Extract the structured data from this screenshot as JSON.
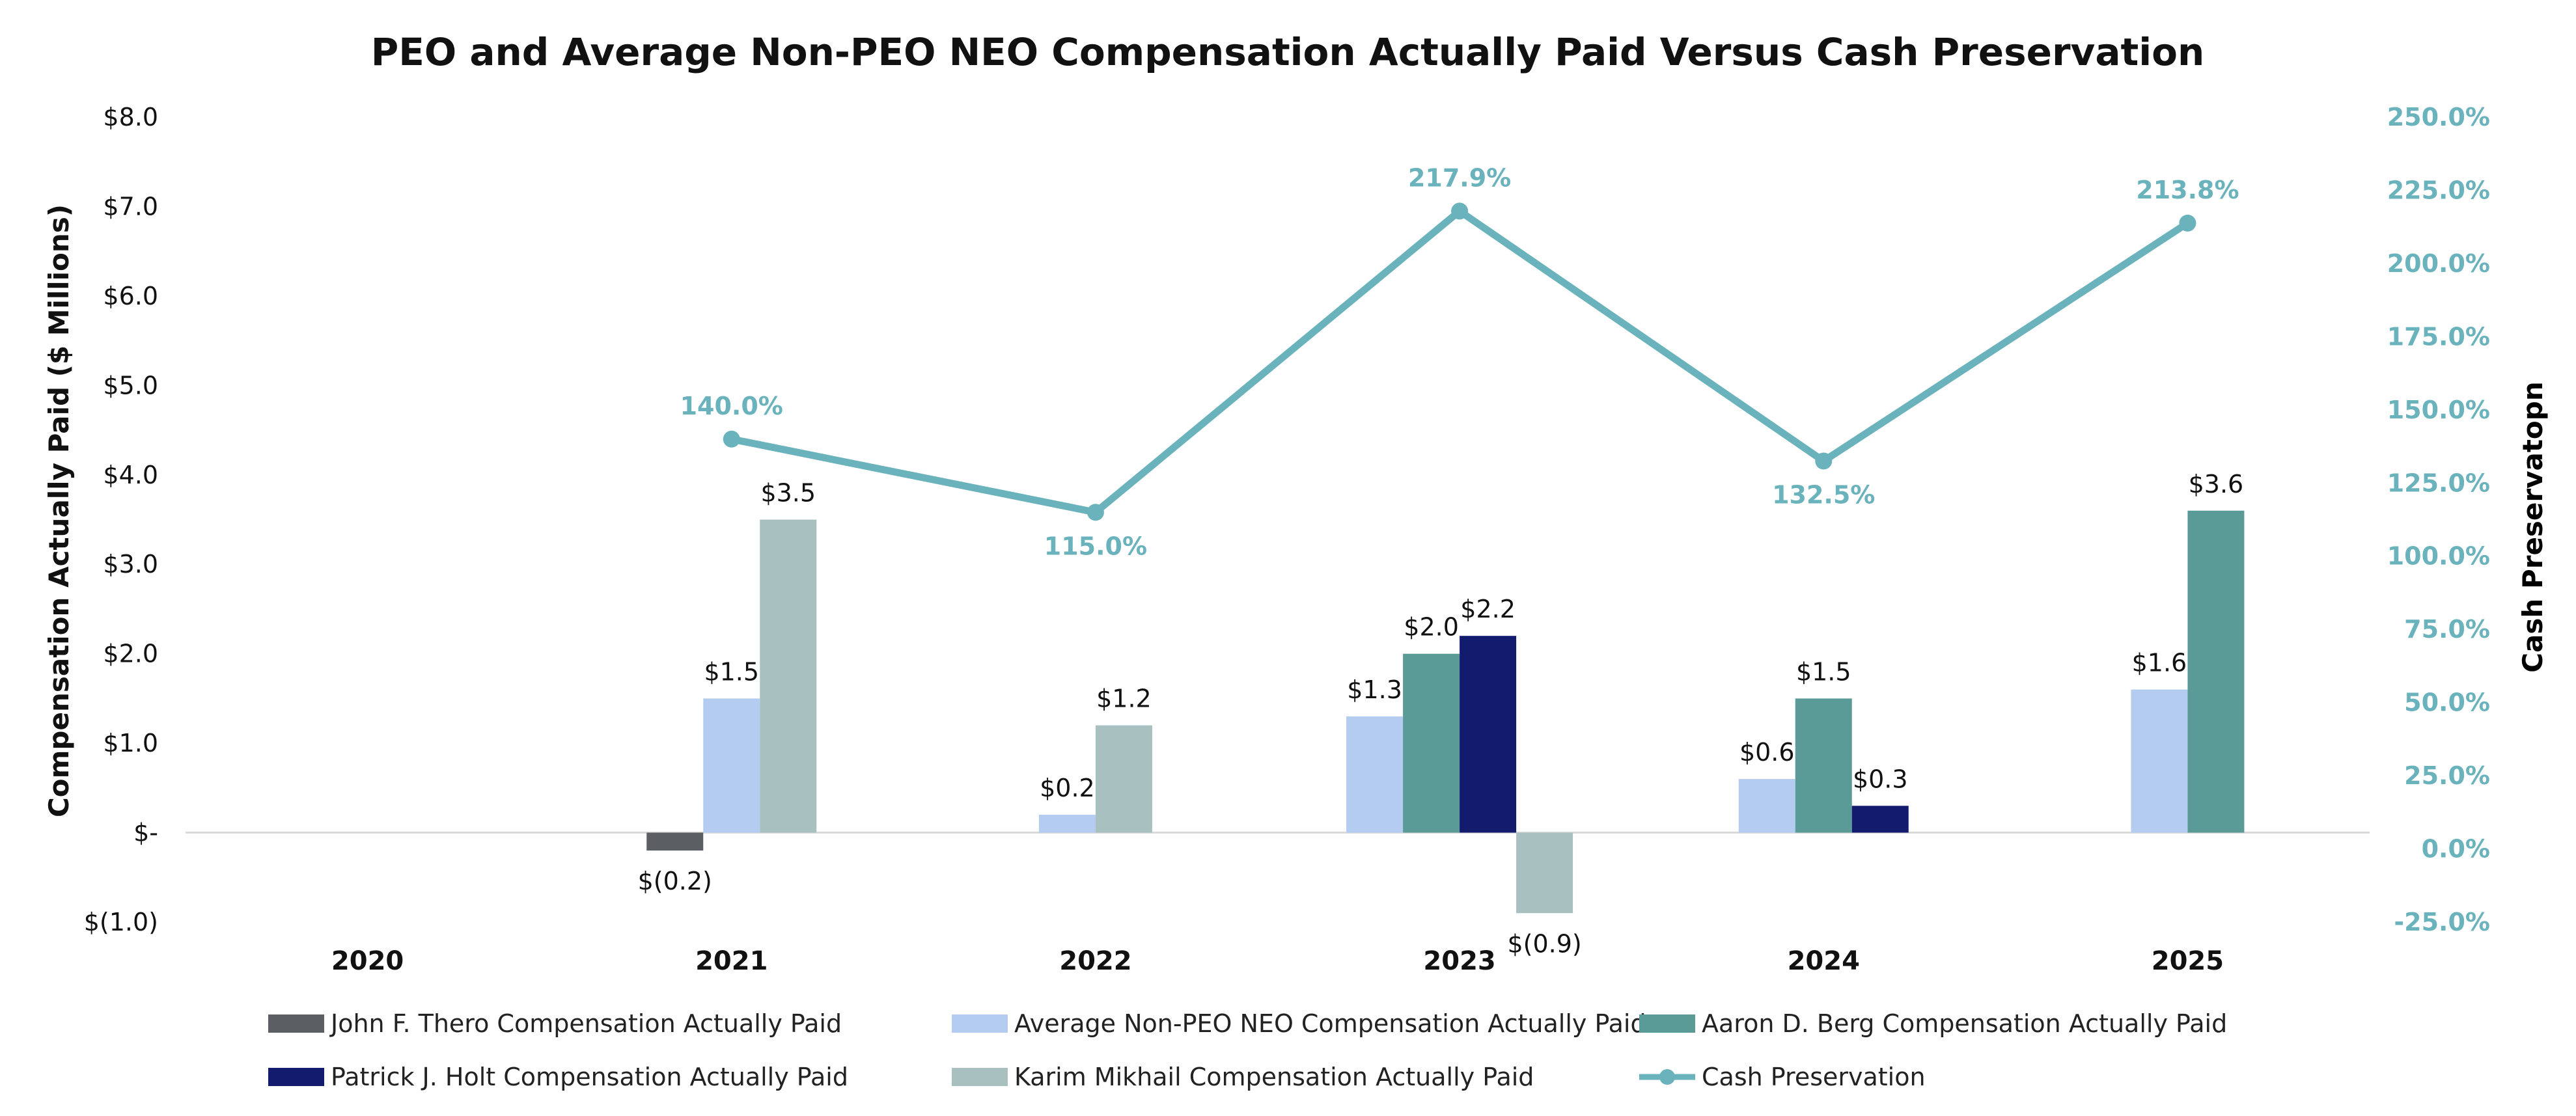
{
  "chart_data": {
    "type": "bar",
    "title": "PEO and Average Non-PEO NEO Compensation Actually Paid Versus Cash Preservation",
    "ylabel": "Compensation Actually Paid ($ Millions)",
    "y2label": "Cash Preservatopn",
    "ylim": [
      -1.0,
      8.0
    ],
    "y2lim": [
      -25.0,
      250.0
    ],
    "yticks": [
      "$(1.0)",
      "$-",
      "$1.0",
      "$2.0",
      "$3.0",
      "$4.0",
      "$5.0",
      "$6.0",
      "$7.0",
      "$8.0"
    ],
    "y2ticks": [
      "-25.0%",
      "0.0%",
      "25.0%",
      "50.0%",
      "75.0%",
      "100.0%",
      "125.0%",
      "150.0%",
      "175.0%",
      "200.0%",
      "225.0%",
      "250.0%"
    ],
    "categories": [
      "2020",
      "2021",
      "2022",
      "2023",
      "2024",
      "2025"
    ],
    "grid": false,
    "legend_position": "bottom",
    "series": [
      {
        "name": "John F. Thero Compensation Actually Paid",
        "color": "#5b5f63",
        "values": [
          null,
          -0.2,
          null,
          null,
          null,
          null
        ],
        "labels": [
          null,
          "$(0.2)",
          null,
          null,
          null,
          null
        ]
      },
      {
        "name": "Average Non-PEO NEO Compensation Actually Paid",
        "color": "#b4ccf0",
        "values": [
          null,
          1.5,
          0.2,
          1.3,
          0.6,
          1.6
        ],
        "labels": [
          null,
          "$1.5",
          "$0.2",
          "$1.3",
          "$0.6",
          "$1.6"
        ]
      },
      {
        "name": "Aaron D. Berg Compensation Actually Paid",
        "color": "#5a9b98",
        "values": [
          null,
          null,
          null,
          2.0,
          1.5,
          3.6
        ],
        "labels": [
          null,
          null,
          null,
          "$2.0",
          "$1.5",
          "$3.6"
        ]
      },
      {
        "name": "Patrick J. Holt Compensation Actually Paid",
        "color": "#131b6e",
        "values": [
          null,
          null,
          null,
          2.2,
          0.3,
          null
        ],
        "labels": [
          null,
          null,
          null,
          "$2.2",
          "$0.3",
          null
        ]
      },
      {
        "name": "Karim Mikhail Compensation Actually Paid",
        "color": "#a8c1c0",
        "values": [
          null,
          3.5,
          1.2,
          -0.9,
          null,
          null
        ],
        "labels": [
          null,
          "$3.5",
          "$1.2",
          "$(0.9)",
          null,
          null
        ]
      }
    ],
    "line_series": {
      "name": "Cash Preservation",
      "color": "#6ab3bc",
      "axis": "right",
      "values": [
        null,
        140.0,
        115.0,
        217.9,
        132.5,
        213.8
      ],
      "labels": [
        null,
        "140.0%",
        "115.0%",
        "217.9%",
        "132.5%",
        "213.8%"
      ]
    }
  },
  "colors": {
    "text": "#111111",
    "right_axis": "#6ab3bc",
    "zero_line": "#d9d9d9"
  }
}
